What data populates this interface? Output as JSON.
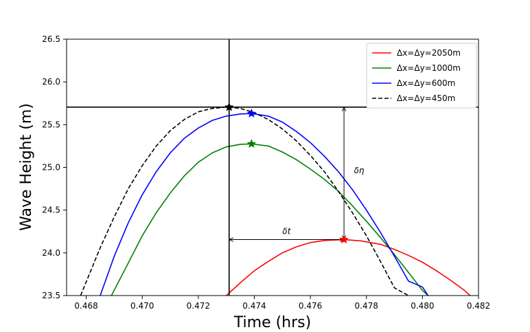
{
  "chart_data": {
    "type": "line",
    "title": "",
    "xlabel": "Time (hrs)",
    "ylabel": "Wave Height (m)",
    "xlim": [
      0.4673,
      0.482
    ],
    "ylim": [
      23.5,
      26.5
    ],
    "xticks": [
      0.468,
      0.47,
      0.472,
      0.474,
      0.476,
      0.478,
      0.48,
      0.482
    ],
    "xtick_labels": [
      "0.468",
      "0.470",
      "0.472",
      "0.474",
      "0.476",
      "0.478",
      "0.480",
      "0.482"
    ],
    "yticks": [
      23.5,
      24.0,
      24.5,
      25.0,
      25.5,
      26.0,
      26.5
    ],
    "ytick_labels": [
      "23.5",
      "24.0",
      "24.5",
      "25.0",
      "25.5",
      "26.0",
      "26.5"
    ],
    "grid": false,
    "legend_position": "top-right",
    "series": [
      {
        "name": "Δx=Δy=2050m",
        "color": "#ff0000",
        "dash": "solid",
        "x": [
          0.473,
          0.4735,
          0.474,
          0.4745,
          0.475,
          0.4755,
          0.476,
          0.4765,
          0.4772,
          0.4778,
          0.4785,
          0.479,
          0.4795,
          0.48,
          0.4805,
          0.481,
          0.4815,
          0.4817
        ],
        "y": [
          23.5,
          23.65,
          23.79,
          23.9,
          24.0,
          24.07,
          24.12,
          24.145,
          24.155,
          24.14,
          24.1,
          24.04,
          23.97,
          23.89,
          23.79,
          23.68,
          23.56,
          23.5
        ],
        "peak": [
          0.4772,
          24.155
        ]
      },
      {
        "name": "Δx=Δy=1000m",
        "color": "#008000",
        "dash": "solid",
        "x": [
          0.4689,
          0.4695,
          0.47,
          0.4705,
          0.471,
          0.4715,
          0.472,
          0.4725,
          0.473,
          0.4735,
          0.4739,
          0.4745,
          0.475,
          0.4755,
          0.476,
          0.4765,
          0.477,
          0.4775,
          0.478,
          0.4785,
          0.479,
          0.4795,
          0.48,
          0.4802
        ],
        "y": [
          23.5,
          23.88,
          24.2,
          24.47,
          24.7,
          24.9,
          25.06,
          25.17,
          25.24,
          25.27,
          25.275,
          25.25,
          25.18,
          25.09,
          24.98,
          24.86,
          24.72,
          24.55,
          24.37,
          24.18,
          23.98,
          23.77,
          23.56,
          23.5
        ],
        "peak": [
          0.4739,
          25.275
        ]
      },
      {
        "name": "Δx=Δy=600m",
        "color": "#0000ff",
        "dash": "solid",
        "x": [
          0.4685,
          0.469,
          0.4695,
          0.47,
          0.4705,
          0.471,
          0.4715,
          0.472,
          0.4725,
          0.473,
          0.4735,
          0.4739,
          0.4745,
          0.475,
          0.4755,
          0.476,
          0.4765,
          0.477,
          0.4775,
          0.478,
          0.4785,
          0.479,
          0.4795,
          0.48,
          0.4802
        ],
        "y": [
          23.5,
          23.96,
          24.35,
          24.68,
          24.95,
          25.17,
          25.34,
          25.46,
          25.55,
          25.6,
          25.625,
          25.63,
          25.6,
          25.53,
          25.42,
          25.29,
          25.13,
          24.95,
          24.74,
          24.5,
          24.24,
          23.96,
          23.67,
          23.6,
          23.5
        ],
        "peak": [
          0.4739,
          25.63
        ]
      },
      {
        "name": "Δx=Δy=450m",
        "color": "#000000",
        "dash": "dashed",
        "x": [
          0.4678,
          0.4685,
          0.469,
          0.4695,
          0.47,
          0.4705,
          0.471,
          0.4715,
          0.472,
          0.4725,
          0.473,
          0.4735,
          0.474,
          0.4745,
          0.475,
          0.4755,
          0.476,
          0.4765,
          0.477,
          0.4775,
          0.478,
          0.4785,
          0.479,
          0.4795
        ],
        "y": [
          23.5,
          24.06,
          24.42,
          24.75,
          25.02,
          25.25,
          25.43,
          25.56,
          25.65,
          25.69,
          25.705,
          25.69,
          25.64,
          25.56,
          25.45,
          25.31,
          25.14,
          24.95,
          24.72,
          24.47,
          24.2,
          23.9,
          23.59,
          23.5
        ],
        "peak": [
          0.4731,
          25.705
        ]
      }
    ],
    "reference_lines": {
      "vertical_x": 0.4731,
      "horizontal_y": 25.705
    },
    "annotations": [
      {
        "text": "δη",
        "from": [
          0.4772,
          25.705
        ],
        "to": [
          0.4772,
          24.155
        ]
      },
      {
        "text": "δt",
        "from": [
          0.4731,
          24.155
        ],
        "to": [
          0.4772,
          24.155
        ]
      }
    ]
  }
}
